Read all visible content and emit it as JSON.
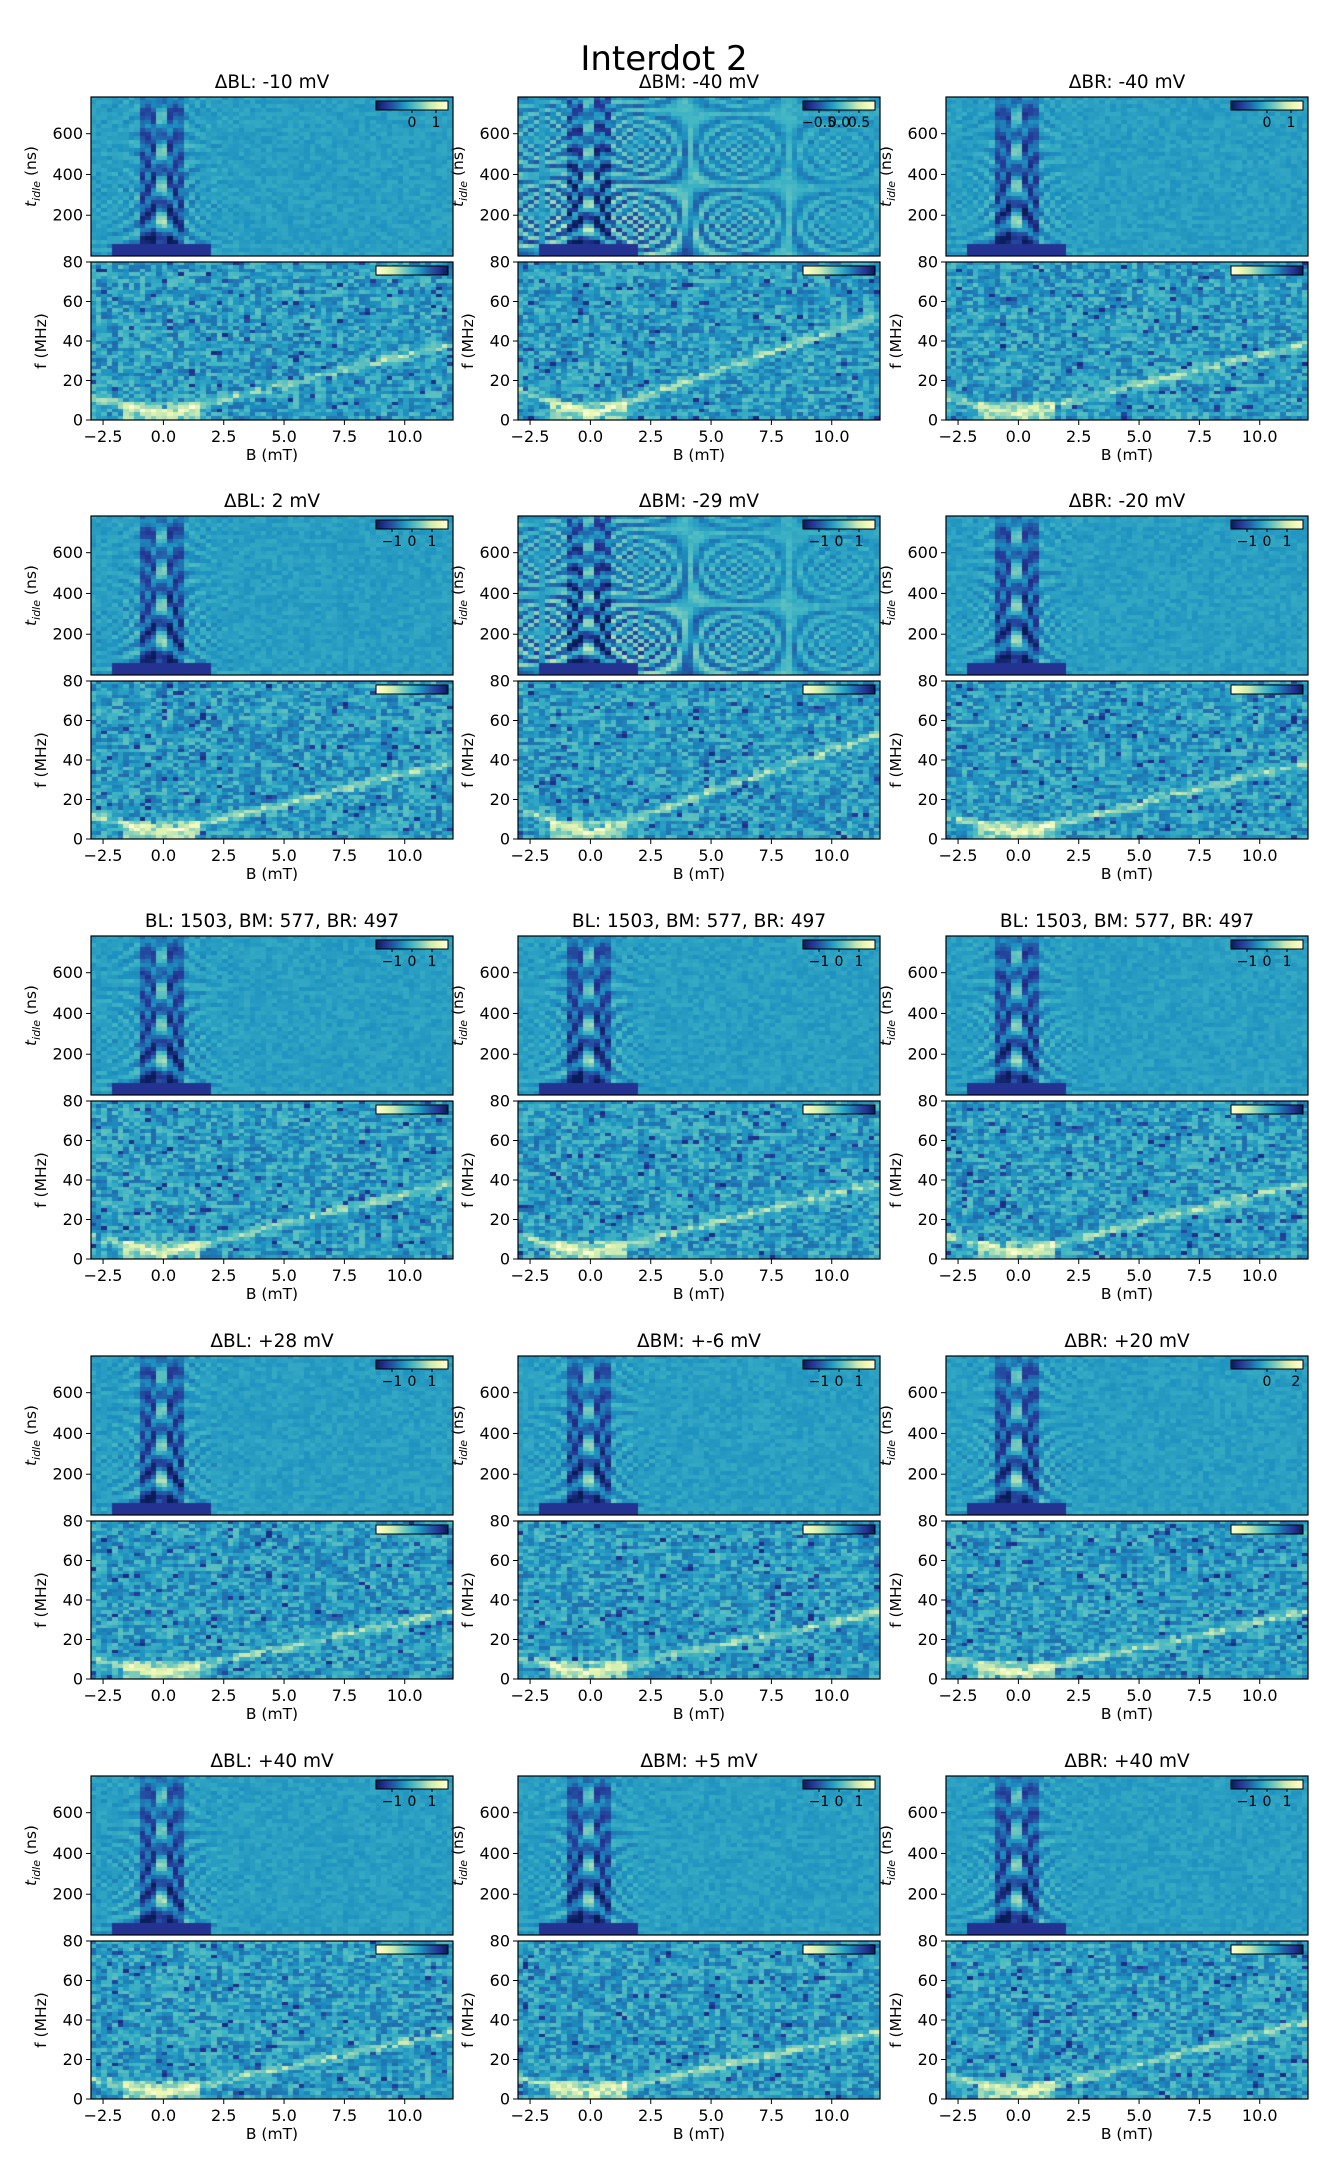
{
  "figure": {
    "title": "Interdot 2",
    "colormap": [
      "#fffed9",
      "#edf8b2",
      "#c7e9b4",
      "#7fcdbb",
      "#41b6c4",
      "#1d91c0",
      "#225ea8",
      "#253494",
      "#081d58"
    ]
  },
  "chart_data": [
    {
      "type": "heatmap",
      "panel": "ΔBL: -10 mV",
      "title": "ΔBL: -10 mV",
      "top": {
        "ylabel": "t_idle (ns)",
        "ylabel_main": "t",
        "ylabel_sub": "idle",
        "ylabel_unit": " (ns)",
        "yticks": [
          "200",
          "400",
          "600"
        ],
        "ylim": [
          0,
          780
        ],
        "cbar_ticks": [
          "0",
          "1"
        ],
        "cbar_range": [
          -1.5,
          1.5
        ]
      },
      "bottom": {
        "ylabel": "f (MHz)",
        "yticks": [
          "0",
          "20",
          "40",
          "60",
          "80"
        ],
        "ylim": [
          0,
          80
        ],
        "xlabel": "B (mT)",
        "xticks": [
          "−2.5",
          "0.0",
          "2.5",
          "5.0",
          "7.5",
          "10.0"
        ],
        "xlim": [
          -3.0,
          12.0
        ],
        "line_slope_mhz_per_mt": 3.0
      }
    },
    {
      "type": "heatmap",
      "panel": "ΔBM: -40 mV",
      "title": "ΔBM: -40 mV",
      "top": {
        "ylabel": "t_idle (ns)",
        "ylabel_main": "t",
        "ylabel_sub": "idle",
        "ylabel_unit": " (ns)",
        "yticks": [
          "200",
          "400",
          "600"
        ],
        "ylim": [
          0,
          780
        ],
        "cbar_ticks": [
          "−0.5",
          "0.0",
          "0.5"
        ],
        "cbar_range": [
          -0.9,
          0.9
        ]
      },
      "bottom": {
        "ylabel": "f (MHz)",
        "yticks": [
          "0",
          "20",
          "40",
          "60",
          "80"
        ],
        "ylim": [
          0,
          80
        ],
        "xlabel": "B (mT)",
        "xticks": [
          "−2.5",
          "0.0",
          "2.5",
          "5.0",
          "7.5",
          "10.0"
        ],
        "xlim": [
          -3.0,
          12.0
        ],
        "line_slope_mhz_per_mt": 4.2
      }
    },
    {
      "type": "heatmap",
      "panel": "ΔBR: -40 mV",
      "title": "ΔBR: -40 mV",
      "top": {
        "ylabel": "t_idle (ns)",
        "ylabel_main": "t",
        "ylabel_sub": "idle",
        "ylabel_unit": " (ns)",
        "yticks": [
          "200",
          "400",
          "600"
        ],
        "ylim": [
          0,
          780
        ],
        "cbar_ticks": [
          "0",
          "1"
        ],
        "cbar_range": [
          -1.5,
          1.5
        ]
      },
      "bottom": {
        "ylabel": "f (MHz)",
        "yticks": [
          "0",
          "20",
          "40",
          "60",
          "80"
        ],
        "ylim": [
          0,
          80
        ],
        "xlabel": "B (mT)",
        "xticks": [
          "−2.5",
          "0.0",
          "2.5",
          "5.0",
          "7.5",
          "10.0"
        ],
        "xlim": [
          -3.0,
          12.0
        ],
        "line_slope_mhz_per_mt": 3.0
      }
    },
    {
      "type": "heatmap",
      "panel": "ΔBL: 2 mV",
      "title": "ΔBL: 2 mV",
      "top": {
        "ylabel": "t_idle (ns)",
        "ylabel_main": "t",
        "ylabel_sub": "idle",
        "ylabel_unit": " (ns)",
        "yticks": [
          "200",
          "400",
          "600"
        ],
        "ylim": [
          0,
          780
        ],
        "cbar_ticks": [
          "−1",
          "0",
          "1"
        ],
        "cbar_range": [
          -1.8,
          1.8
        ]
      },
      "bottom": {
        "ylabel": "f (MHz)",
        "yticks": [
          "0",
          "20",
          "40",
          "60",
          "80"
        ],
        "ylim": [
          0,
          80
        ],
        "xlabel": "B (mT)",
        "xticks": [
          "−2.5",
          "0.0",
          "2.5",
          "5.0",
          "7.5",
          "10.0"
        ],
        "xlim": [
          -3.0,
          12.0
        ],
        "line_slope_mhz_per_mt": 3.0
      }
    },
    {
      "type": "heatmap",
      "panel": "ΔBM: -29 mV",
      "title": "ΔBM: -29 mV",
      "top": {
        "ylabel": "t_idle (ns)",
        "ylabel_main": "t",
        "ylabel_sub": "idle",
        "ylabel_unit": " (ns)",
        "yticks": [
          "200",
          "400",
          "600"
        ],
        "ylim": [
          0,
          780
        ],
        "cbar_ticks": [
          "−1",
          "0",
          "1"
        ],
        "cbar_range": [
          -1.8,
          1.8
        ]
      },
      "bottom": {
        "ylabel": "f (MHz)",
        "yticks": [
          "0",
          "20",
          "40",
          "60",
          "80"
        ],
        "ylim": [
          0,
          80
        ],
        "xlabel": "B (mT)",
        "xticks": [
          "−2.5",
          "0.0",
          "2.5",
          "5.0",
          "7.5",
          "10.0"
        ],
        "xlim": [
          -3.0,
          12.0
        ],
        "line_slope_mhz_per_mt": 4.2
      }
    },
    {
      "type": "heatmap",
      "panel": "ΔBR: -20 mV",
      "title": "ΔBR: -20 mV",
      "top": {
        "ylabel": "t_idle (ns)",
        "ylabel_main": "t",
        "ylabel_sub": "idle",
        "ylabel_unit": " (ns)",
        "yticks": [
          "200",
          "400",
          "600"
        ],
        "ylim": [
          0,
          780
        ],
        "cbar_ticks": [
          "−1",
          "0",
          "1"
        ],
        "cbar_range": [
          -1.8,
          1.8
        ]
      },
      "bottom": {
        "ylabel": "f (MHz)",
        "yticks": [
          "0",
          "20",
          "40",
          "60",
          "80"
        ],
        "ylim": [
          0,
          80
        ],
        "xlabel": "B (mT)",
        "xticks": [
          "−2.5",
          "0.0",
          "2.5",
          "5.0",
          "7.5",
          "10.0"
        ],
        "xlim": [
          -3.0,
          12.0
        ],
        "line_slope_mhz_per_mt": 3.0
      }
    },
    {
      "type": "heatmap",
      "panel": "BL: 1503, BM: 577, BR: 497 (left)",
      "title": "BL: 1503, BM: 577, BR: 497",
      "top": {
        "ylabel": "t_idle (ns)",
        "ylabel_main": "t",
        "ylabel_sub": "idle",
        "ylabel_unit": " (ns)",
        "yticks": [
          "200",
          "400",
          "600"
        ],
        "ylim": [
          0,
          780
        ],
        "cbar_ticks": [
          "−1",
          "0",
          "1"
        ],
        "cbar_range": [
          -1.8,
          1.8
        ]
      },
      "bottom": {
        "ylabel": "f (MHz)",
        "yticks": [
          "0",
          "20",
          "40",
          "60",
          "80"
        ],
        "ylim": [
          0,
          80
        ],
        "xlabel": "B (mT)",
        "xticks": [
          "−2.5",
          "0.0",
          "2.5",
          "5.0",
          "7.5",
          "10.0"
        ],
        "xlim": [
          -3.0,
          12.0
        ],
        "line_slope_mhz_per_mt": 3.0
      }
    },
    {
      "type": "heatmap",
      "panel": "BL: 1503, BM: 577, BR: 497 (middle)",
      "title": "BL: 1503, BM: 577, BR: 497",
      "top": {
        "ylabel": "t_idle (ns)",
        "ylabel_main": "t",
        "ylabel_sub": "idle",
        "ylabel_unit": " (ns)",
        "yticks": [
          "200",
          "400",
          "600"
        ],
        "ylim": [
          0,
          780
        ],
        "cbar_ticks": [
          "−1",
          "0",
          "1"
        ],
        "cbar_range": [
          -1.8,
          1.8
        ]
      },
      "bottom": {
        "ylabel": "f (MHz)",
        "yticks": [
          "0",
          "20",
          "40",
          "60",
          "80"
        ],
        "ylim": [
          0,
          80
        ],
        "xlabel": "B (mT)",
        "xticks": [
          "−2.5",
          "0.0",
          "2.5",
          "5.0",
          "7.5",
          "10.0"
        ],
        "xlim": [
          -3.0,
          12.0
        ],
        "line_slope_mhz_per_mt": 3.0
      }
    },
    {
      "type": "heatmap",
      "panel": "BL: 1503, BM: 577, BR: 497 (right)",
      "title": "BL: 1503, BM: 577, BR: 497",
      "top": {
        "ylabel": "t_idle (ns)",
        "ylabel_main": "t",
        "ylabel_sub": "idle",
        "ylabel_unit": " (ns)",
        "yticks": [
          "200",
          "400",
          "600"
        ],
        "ylim": [
          0,
          780
        ],
        "cbar_ticks": [
          "−1",
          "0",
          "1"
        ],
        "cbar_range": [
          -1.8,
          1.8
        ]
      },
      "bottom": {
        "ylabel": "f (MHz)",
        "yticks": [
          "0",
          "20",
          "40",
          "60",
          "80"
        ],
        "ylim": [
          0,
          80
        ],
        "xlabel": "B (mT)",
        "xticks": [
          "−2.5",
          "0.0",
          "2.5",
          "5.0",
          "7.5",
          "10.0"
        ],
        "xlim": [
          -3.0,
          12.0
        ],
        "line_slope_mhz_per_mt": 3.0
      }
    },
    {
      "type": "heatmap",
      "panel": "ΔBL: +28 mV",
      "title": "ΔBL: +28 mV",
      "top": {
        "ylabel": "t_idle (ns)",
        "ylabel_main": "t",
        "ylabel_sub": "idle",
        "ylabel_unit": " (ns)",
        "yticks": [
          "200",
          "400",
          "600"
        ],
        "ylim": [
          0,
          780
        ],
        "cbar_ticks": [
          "−1",
          "0",
          "1"
        ],
        "cbar_range": [
          -1.8,
          1.8
        ]
      },
      "bottom": {
        "ylabel": "f (MHz)",
        "yticks": [
          "0",
          "20",
          "40",
          "60",
          "80"
        ],
        "ylim": [
          0,
          80
        ],
        "xlabel": "B (mT)",
        "xticks": [
          "−2.5",
          "0.0",
          "2.5",
          "5.0",
          "7.5",
          "10.0"
        ],
        "xlim": [
          -3.0,
          12.0
        ],
        "line_slope_mhz_per_mt": 2.6
      }
    },
    {
      "type": "heatmap",
      "panel": "ΔBM: +-6 mV",
      "title": "ΔBM: +-6 mV",
      "top": {
        "ylabel": "t_idle (ns)",
        "ylabel_main": "t",
        "ylabel_sub": "idle",
        "ylabel_unit": " (ns)",
        "yticks": [
          "200",
          "400",
          "600"
        ],
        "ylim": [
          0,
          780
        ],
        "cbar_ticks": [
          "−1",
          "0",
          "1"
        ],
        "cbar_range": [
          -1.8,
          1.8
        ]
      },
      "bottom": {
        "ylabel": "f (MHz)",
        "yticks": [
          "0",
          "20",
          "40",
          "60",
          "80"
        ],
        "ylim": [
          0,
          80
        ],
        "xlabel": "B (mT)",
        "xticks": [
          "−2.5",
          "0.0",
          "2.5",
          "5.0",
          "7.5",
          "10.0"
        ],
        "xlim": [
          -3.0,
          12.0
        ],
        "line_slope_mhz_per_mt": 2.6
      }
    },
    {
      "type": "heatmap",
      "panel": "ΔBR: +20 mV",
      "title": "ΔBR: +20 mV",
      "top": {
        "ylabel": "t_idle (ns)",
        "ylabel_main": "t",
        "ylabel_sub": "idle",
        "ylabel_unit": " (ns)",
        "yticks": [
          "200",
          "400",
          "600"
        ],
        "ylim": [
          0,
          780
        ],
        "cbar_ticks": [
          "0",
          "2"
        ],
        "cbar_range": [
          -2.5,
          2.5
        ]
      },
      "bottom": {
        "ylabel": "f (MHz)",
        "yticks": [
          "0",
          "20",
          "40",
          "60",
          "80"
        ],
        "ylim": [
          0,
          80
        ],
        "xlabel": "B (mT)",
        "xticks": [
          "−2.5",
          "0.0",
          "2.5",
          "5.0",
          "7.5",
          "10.0"
        ],
        "xlim": [
          -3.0,
          12.0
        ],
        "line_slope_mhz_per_mt": 2.6
      }
    },
    {
      "type": "heatmap",
      "panel": "ΔBL: +40 mV",
      "title": "ΔBL: +40 mV",
      "top": {
        "ylabel": "t_idle (ns)",
        "ylabel_main": "t",
        "ylabel_sub": "idle",
        "ylabel_unit": " (ns)",
        "yticks": [
          "200",
          "400",
          "600"
        ],
        "ylim": [
          0,
          780
        ],
        "cbar_ticks": [
          "−1",
          "0",
          "1"
        ],
        "cbar_range": [
          -1.8,
          1.8
        ]
      },
      "bottom": {
        "ylabel": "f (MHz)",
        "yticks": [
          "0",
          "20",
          "40",
          "60",
          "80"
        ],
        "ylim": [
          0,
          80
        ],
        "xlabel": "B (mT)",
        "xticks": [
          "−2.5",
          "0.0",
          "2.5",
          "5.0",
          "7.5",
          "10.0"
        ],
        "xlim": [
          -3.0,
          12.0
        ],
        "line_slope_mhz_per_mt": 2.6
      }
    },
    {
      "type": "heatmap",
      "panel": "ΔBM: +5 mV",
      "title": "ΔBM: +5 mV",
      "top": {
        "ylabel": "t_idle (ns)",
        "ylabel_main": "t",
        "ylabel_sub": "idle",
        "ylabel_unit": " (ns)",
        "yticks": [
          "200",
          "400",
          "600"
        ],
        "ylim": [
          0,
          780
        ],
        "cbar_ticks": [
          "−1",
          "0",
          "1"
        ],
        "cbar_range": [
          -1.8,
          1.8
        ]
      },
      "bottom": {
        "ylabel": "f (MHz)",
        "yticks": [
          "0",
          "20",
          "40",
          "60",
          "80"
        ],
        "ylim": [
          0,
          80
        ],
        "xlabel": "B (mT)",
        "xticks": [
          "−2.5",
          "0.0",
          "2.5",
          "5.0",
          "7.5",
          "10.0"
        ],
        "xlim": [
          -3.0,
          12.0
        ],
        "line_slope_mhz_per_mt": 2.6
      }
    },
    {
      "type": "heatmap",
      "panel": "ΔBR: +40 mV",
      "title": "ΔBR: +40 mV",
      "top": {
        "ylabel": "t_idle (ns)",
        "ylabel_main": "t",
        "ylabel_sub": "idle",
        "ylabel_unit": " (ns)",
        "yticks": [
          "200",
          "400",
          "600"
        ],
        "ylim": [
          0,
          780
        ],
        "cbar_ticks": [
          "−1",
          "0",
          "1"
        ],
        "cbar_range": [
          -1.8,
          1.8
        ]
      },
      "bottom": {
        "ylabel": "f (MHz)",
        "yticks": [
          "0",
          "20",
          "40",
          "60",
          "80"
        ],
        "ylim": [
          0,
          80
        ],
        "xlabel": "B (mT)",
        "xticks": [
          "−2.5",
          "0.0",
          "2.5",
          "5.0",
          "7.5",
          "10.0"
        ],
        "xlim": [
          -3.0,
          12.0
        ],
        "line_slope_mhz_per_mt": 3.0
      }
    }
  ]
}
